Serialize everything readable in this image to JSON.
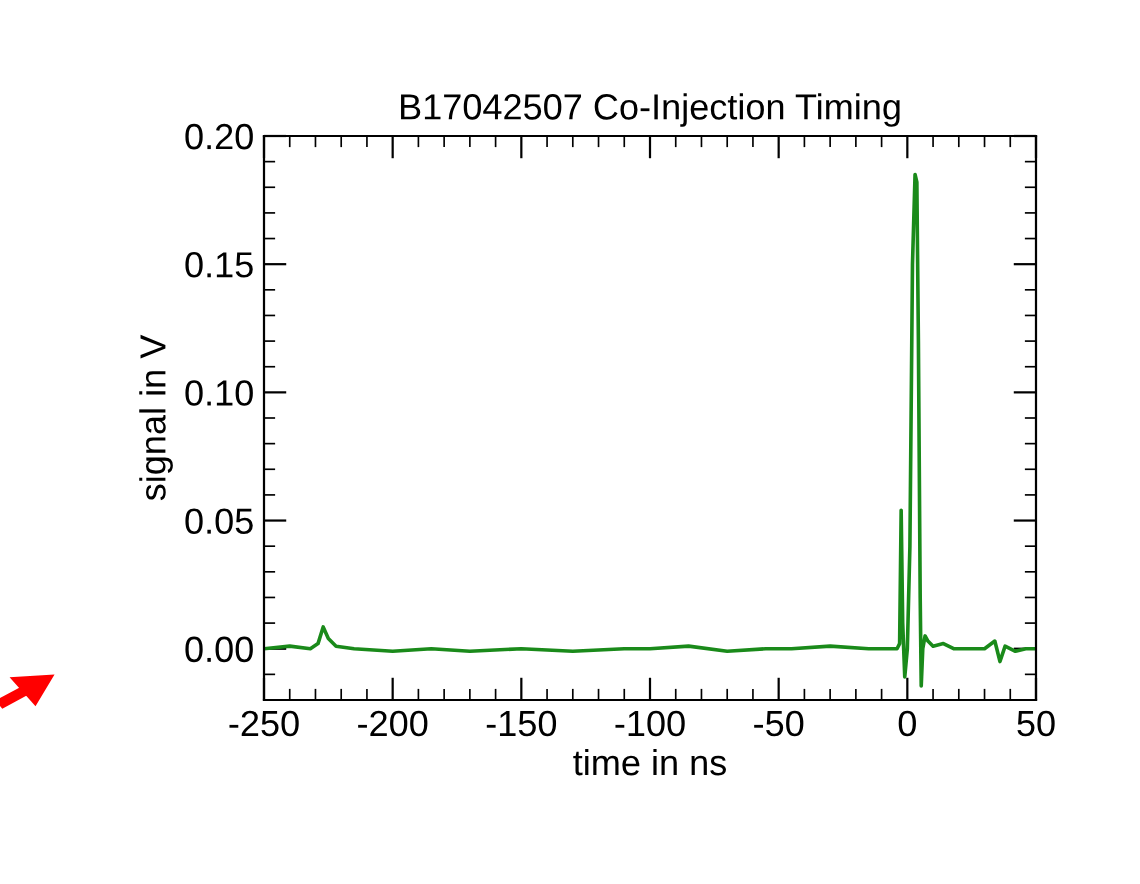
{
  "chart_data": {
    "type": "line",
    "title": "B17042507 Co-Injection Timing",
    "xlabel": "time in ns",
    "ylabel": "signal in V",
    "x": [
      -250,
      -240,
      -232,
      -229,
      -227,
      -225,
      -222,
      -215,
      -200,
      -185,
      -170,
      -150,
      -130,
      -110,
      -100,
      -85,
      -70,
      -55,
      -45,
      -30,
      -15,
      -8,
      -4,
      -3,
      -2.4,
      -1.8,
      -1,
      0,
      1,
      2,
      3,
      3.7,
      4.3,
      5,
      5.4,
      6,
      6.9,
      8,
      10,
      14,
      18,
      24,
      30,
      34,
      36,
      38,
      42,
      46,
      50
    ],
    "series": [
      {
        "color": "#1a8a1a",
        "values": [
          0.0,
          0.001,
          0.0,
          0.002,
          0.0085,
          0.004,
          0.001,
          0.0,
          -0.001,
          0.0,
          -0.001,
          0.0,
          -0.001,
          0.0,
          0.0,
          0.001,
          -0.001,
          0.0,
          0.0,
          0.001,
          0.0,
          0.0,
          0.0,
          0.002,
          0.054,
          0.01,
          -0.011,
          0.0,
          0.04,
          0.15,
          0.185,
          0.182,
          0.12,
          0.02,
          -0.0145,
          0.0,
          0.005,
          0.003,
          0.001,
          0.002,
          0.0,
          0.0,
          0.0,
          0.003,
          -0.005,
          0.001,
          -0.001,
          0.0,
          0.0
        ]
      }
    ],
    "xlim": [
      -250,
      50
    ],
    "ylim": [
      -0.02,
      0.2
    ],
    "xticks": [
      {
        "value": -250,
        "label": "-250"
      },
      {
        "value": -200,
        "label": "-200"
      },
      {
        "value": -150,
        "label": "-150"
      },
      {
        "value": -100,
        "label": "-100"
      },
      {
        "value": -50,
        "label": "-50"
      },
      {
        "value": 0,
        "label": "0"
      },
      {
        "value": 50,
        "label": "50"
      }
    ],
    "yticks": [
      {
        "value": 0,
        "label": "0.00"
      },
      {
        "value": 0.05,
        "label": "0.05"
      },
      {
        "value": 0.1,
        "label": "0.10"
      },
      {
        "value": 0.15,
        "label": "0.15"
      },
      {
        "value": 0.2,
        "label": "0.20"
      }
    ],
    "grid": false,
    "legend": false
  }
}
